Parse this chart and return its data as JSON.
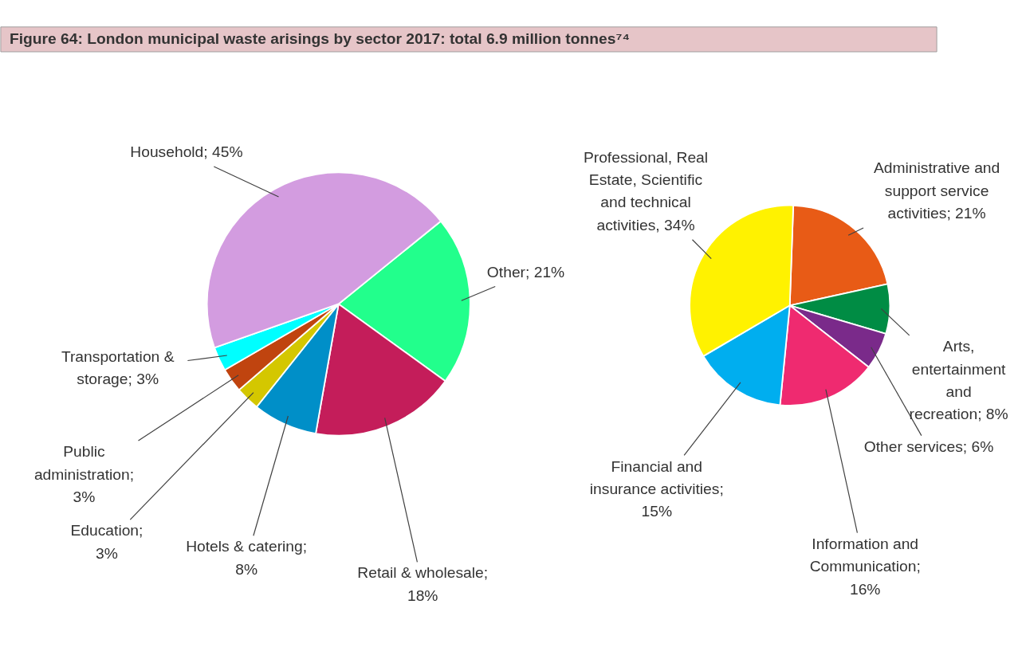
{
  "chart_data": [
    {
      "type": "pie",
      "title": "Figure 64: London municipal waste arisings by sector 2017: total 6.9 million tonnes⁷⁴",
      "categories": [
        "Other; 21%",
        "Retail & wholesale; 18%",
        "Hotels & catering; 8%",
        "Education; 3%",
        "Public administration; 3%",
        "Transportation & storage; 3%",
        "Household; 45%"
      ],
      "values": [
        21,
        18,
        8,
        3,
        3,
        3,
        45
      ],
      "colors": [
        "#22ff8c",
        "#c41d5a",
        "#008fc8",
        "#d4c700",
        "#c0440f",
        "#00ffff",
        "#d39ce0"
      ]
    },
    {
      "type": "pie",
      "categories": [
        "Administrative and support service activities; 21%",
        "Arts, entertainment and recreation; 8%",
        "Other services; 6%",
        "Information and Communication; 16%",
        "Financial and insurance activities; 15%",
        "Professional, Real Estate, Scientific and technical activities, 34%"
      ],
      "values": [
        21,
        8,
        6,
        16,
        15,
        34
      ],
      "colors": [
        "#e85b16",
        "#008c44",
        "#7a2a8a",
        "#ef2a70",
        "#00aeef",
        "#fff200"
      ]
    }
  ]
}
